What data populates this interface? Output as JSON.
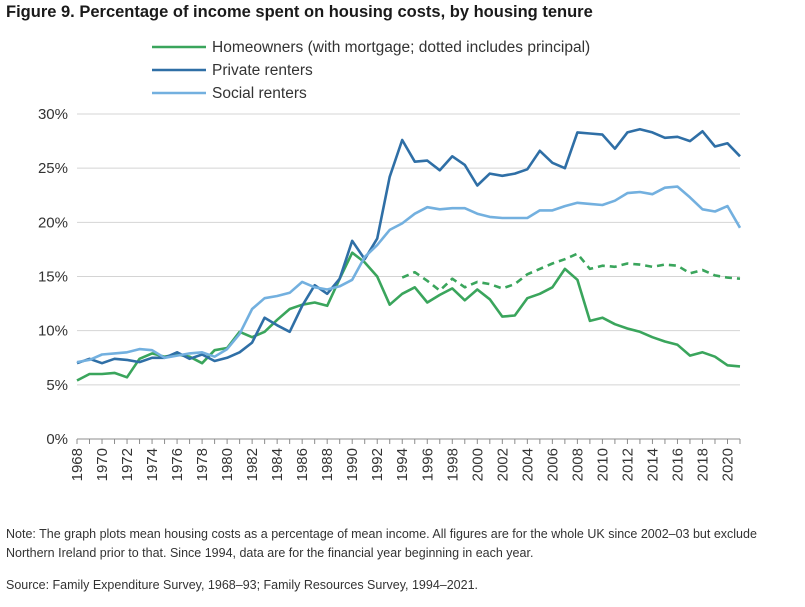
{
  "title": "Figure 9. Percentage of income spent on housing costs, by housing tenure",
  "note": "Note: The graph plots mean housing costs as a percentage of mean income. All figures are for the whole UK since 2002–03 but exclude Northern Ireland prior to that. Since 1994, data are for the financial year beginning in each year.",
  "source": "Source: Family Expenditure Survey, 1968–93; Family Resources Survey, 1994–2021.",
  "chart_data": {
    "type": "line",
    "title": "Figure 9. Percentage of income spent on housing costs, by housing tenure",
    "xlabel": "",
    "ylabel": "",
    "xlim": [
      1968,
      2021
    ],
    "ylim": [
      0,
      30
    ],
    "y_ticks": [
      "0%",
      "5%",
      "10%",
      "15%",
      "20%",
      "25%",
      "30%"
    ],
    "x_ticks": [
      "1968",
      "1970",
      "1972",
      "1974",
      "1976",
      "1978",
      "1980",
      "1982",
      "1984",
      "1986",
      "1988",
      "1990",
      "1992",
      "1994",
      "1996",
      "1998",
      "2000",
      "2002",
      "2004",
      "2006",
      "2008",
      "2010",
      "2012",
      "2014",
      "2016",
      "2018",
      "2020"
    ],
    "grid": "horizontal",
    "legend": "top",
    "series": [
      {
        "name": "Homeowners (with mortgage; dotted includes principal)",
        "color": "#3aa55c",
        "style": "solid",
        "x": [
          1968,
          1969,
          1970,
          1971,
          1972,
          1973,
          1974,
          1975,
          1976,
          1977,
          1978,
          1979,
          1980,
          1981,
          1982,
          1983,
          1984,
          1985,
          1986,
          1987,
          1988,
          1989,
          1990,
          1991,
          1992,
          1993,
          1994,
          1995,
          1996,
          1997,
          1998,
          1999,
          2000,
          2001,
          2002,
          2003,
          2004,
          2005,
          2006,
          2007,
          2008,
          2009,
          2010,
          2011,
          2012,
          2013,
          2014,
          2015,
          2016,
          2017,
          2018,
          2019,
          2020,
          2021
        ],
        "values": [
          5.4,
          6.0,
          6.0,
          6.1,
          5.7,
          7.4,
          7.9,
          7.6,
          7.8,
          7.6,
          7.0,
          8.2,
          8.4,
          9.9,
          9.4,
          9.9,
          11.0,
          12.0,
          12.4,
          12.6,
          12.3,
          14.8,
          17.2,
          16.3,
          15.0,
          12.4,
          13.4,
          14.0,
          12.6,
          13.3,
          13.9,
          12.8,
          13.8,
          12.9,
          11.3,
          11.4,
          13.0,
          13.4,
          14.0,
          15.7,
          14.7,
          10.9,
          11.2,
          10.6,
          10.2,
          9.9,
          9.4,
          9.0,
          8.7,
          7.7,
          8.0,
          7.6,
          6.8,
          6.7
        ]
      },
      {
        "name": "",
        "color": "#3aa55c",
        "style": "dashed",
        "x": [
          1994,
          1995,
          1996,
          1997,
          1998,
          1999,
          2000,
          2001,
          2002,
          2003,
          2004,
          2005,
          2006,
          2007,
          2008,
          2009,
          2010,
          2011,
          2012,
          2013,
          2014,
          2015,
          2016,
          2017,
          2018,
          2019,
          2020,
          2021
        ],
        "values": [
          14.9,
          15.4,
          14.6,
          13.7,
          14.8,
          14.0,
          14.5,
          14.3,
          13.9,
          14.3,
          15.2,
          15.7,
          16.2,
          16.6,
          17.1,
          15.7,
          16.0,
          15.9,
          16.2,
          16.1,
          15.9,
          16.1,
          16.0,
          15.3,
          15.6,
          15.1,
          14.9,
          14.8
        ]
      },
      {
        "name": "Private renters",
        "color": "#2f6fa6",
        "style": "solid",
        "x": [
          1968,
          1969,
          1970,
          1971,
          1972,
          1973,
          1974,
          1975,
          1976,
          1977,
          1978,
          1979,
          1980,
          1981,
          1982,
          1983,
          1984,
          1985,
          1986,
          1987,
          1988,
          1989,
          1990,
          1991,
          1992,
          1993,
          1994,
          1995,
          1996,
          1997,
          1998,
          1999,
          2000,
          2001,
          2002,
          2003,
          2004,
          2005,
          2006,
          2007,
          2008,
          2009,
          2010,
          2011,
          2012,
          2013,
          2014,
          2015,
          2016,
          2017,
          2018,
          2019,
          2020,
          2021
        ],
        "values": [
          7.0,
          7.4,
          7.0,
          7.4,
          7.3,
          7.1,
          7.5,
          7.5,
          8.0,
          7.4,
          7.8,
          7.2,
          7.5,
          8.0,
          8.9,
          11.2,
          10.5,
          9.9,
          12.3,
          14.2,
          13.4,
          14.8,
          18.3,
          16.6,
          18.5,
          24.2,
          27.6,
          25.6,
          25.7,
          24.8,
          26.1,
          25.3,
          23.4,
          24.5,
          24.3,
          24.5,
          24.9,
          26.6,
          25.5,
          25.0,
          28.3,
          28.2,
          28.1,
          26.8,
          28.3,
          28.6,
          28.3,
          27.8,
          27.9,
          27.5,
          28.4,
          27.0,
          27.3,
          26.1
        ]
      },
      {
        "name": "Social renters",
        "color": "#73b0df",
        "style": "solid",
        "x": [
          1968,
          1969,
          1970,
          1971,
          1972,
          1973,
          1974,
          1975,
          1976,
          1977,
          1978,
          1979,
          1980,
          1981,
          1982,
          1983,
          1984,
          1985,
          1986,
          1987,
          1988,
          1989,
          1990,
          1991,
          1992,
          1993,
          1994,
          1995,
          1996,
          1997,
          1998,
          1999,
          2000,
          2001,
          2002,
          2003,
          2004,
          2005,
          2006,
          2007,
          2008,
          2009,
          2010,
          2011,
          2012,
          2013,
          2014,
          2015,
          2016,
          2017,
          2018,
          2019,
          2020,
          2021
        ],
        "values": [
          7.1,
          7.3,
          7.8,
          7.9,
          8.0,
          8.3,
          8.2,
          7.5,
          7.7,
          7.9,
          8.0,
          7.6,
          8.3,
          9.7,
          12.0,
          13.0,
          13.2,
          13.5,
          14.5,
          14.0,
          13.8,
          14.1,
          14.7,
          16.8,
          17.9,
          19.3,
          19.9,
          20.8,
          21.4,
          21.2,
          21.3,
          21.3,
          20.8,
          20.5,
          20.4,
          20.4,
          20.4,
          21.1,
          21.1,
          21.5,
          21.8,
          21.7,
          21.6,
          22.0,
          22.7,
          22.8,
          22.6,
          23.2,
          23.3,
          22.3,
          21.2,
          21.0,
          21.5,
          19.5
        ]
      }
    ]
  }
}
